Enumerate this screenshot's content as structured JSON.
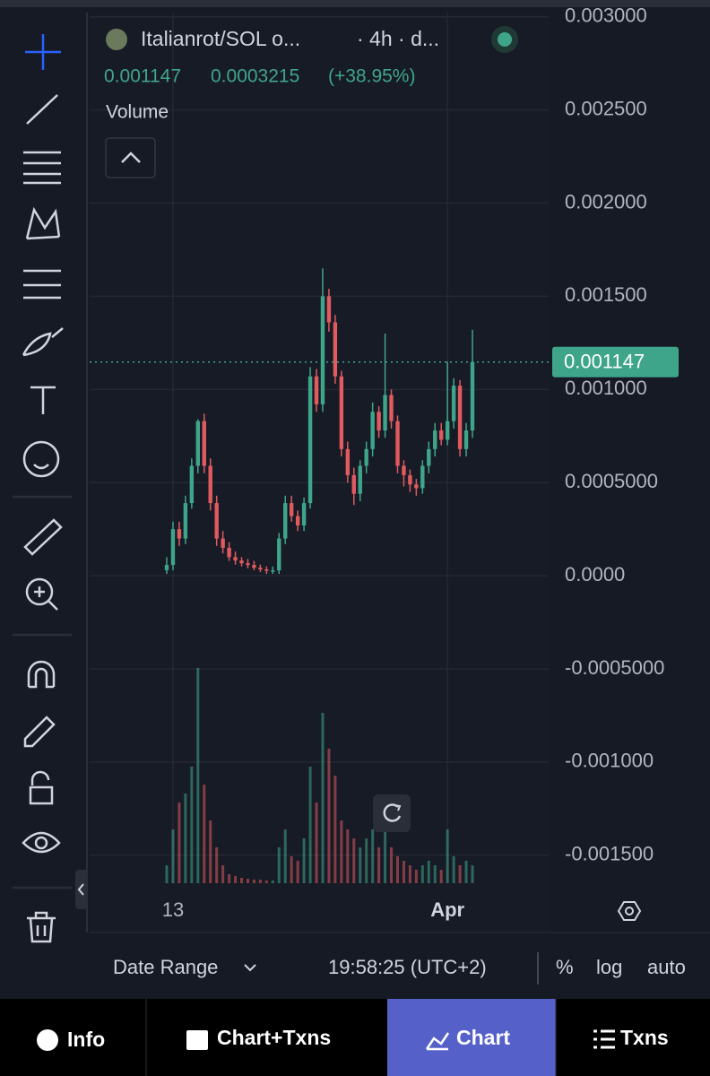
{
  "chart_data": {
    "type": "candlestick",
    "title": "Italianrot/SOL o...",
    "interval": "· 4h · d...",
    "price_change": "0.0003215",
    "percent_change": "(+38.95%)",
    "last_price": 0.001147,
    "volume_label": "Volume",
    "categories": [
      null,
      "13",
      null,
      null,
      null,
      null,
      null,
      null,
      null,
      null,
      null,
      null,
      null,
      null,
      null,
      null,
      null,
      null,
      null,
      null,
      null,
      null,
      null,
      null,
      null,
      null,
      null,
      null,
      null,
      null,
      null,
      null,
      null,
      null,
      null,
      null,
      null,
      null,
      null,
      null,
      null,
      null,
      null,
      null,
      null,
      "Apr",
      null,
      null,
      null,
      null
    ],
    "open": [
      3e-05,
      5.8e-05,
      0.00025,
      0.0002,
      0.00039,
      0.00059,
      0.00083,
      0.00059,
      0.00039,
      0.0002,
      0.00015,
      0.0001,
      8.2e-05,
      6.7e-05,
      5.8e-05,
      4.3e-05,
      3.4e-05,
      2.9e-05,
      2.9e-05,
      0.0002,
      0.00039,
      0.00032,
      0.00027,
      0.00039,
      0.00107,
      0.00092,
      0.0015,
      0.00136,
      0.00107,
      0.00068,
      0.00054,
      0.00044,
      0.00059,
      0.00068,
      0.00088,
      0.00078,
      0.00097,
      0.00083,
      0.00059,
      0.00054,
      0.00049,
      0.00047,
      0.00059,
      0.00068,
      0.00078,
      0.00073,
      0.00083,
      0.00102,
      0.00068,
      0.00078
    ],
    "high": [
      0.0001,
      0.00029,
      0.00029,
      0.00043,
      0.00063,
      0.00084,
      0.00087,
      0.00063,
      0.00043,
      0.00024,
      0.00018,
      0.00013,
      0.0001,
      9e-05,
      8e-05,
      6e-05,
      5e-05,
      5e-05,
      0.00023,
      0.00043,
      0.00043,
      0.00035,
      0.00042,
      0.00112,
      0.00111,
      0.00165,
      0.00154,
      0.0014,
      0.0011,
      0.00072,
      0.00058,
      0.00062,
      0.00072,
      0.00093,
      0.00091,
      0.0013,
      0.001,
      0.00086,
      0.00062,
      0.00057,
      0.00052,
      0.00062,
      0.00072,
      0.00082,
      0.00082,
      0.00115,
      0.00106,
      0.00105,
      0.00082,
      0.00132
    ],
    "low": [
      1e-05,
      3e-05,
      0.00016,
      0.00017,
      0.00036,
      0.00055,
      0.00055,
      0.00035,
      0.00016,
      0.00012,
      8e-05,
      6e-05,
      5e-05,
      4e-05,
      3e-05,
      2e-05,
      1e-05,
      1e-05,
      1e-05,
      0.00017,
      0.00029,
      0.00024,
      0.00024,
      0.00036,
      0.00088,
      0.00088,
      0.00131,
      0.00103,
      0.00064,
      0.0005,
      0.00038,
      0.0004,
      0.00055,
      0.00064,
      0.00074,
      0.00074,
      0.00079,
      0.00055,
      0.00048,
      0.00045,
      0.00043,
      0.00044,
      0.00055,
      0.00064,
      0.0007,
      0.0007,
      0.00079,
      0.00064,
      0.00064,
      0.00074
    ],
    "close": [
      5.8e-05,
      0.00025,
      0.0002,
      0.00039,
      0.00059,
      0.00083,
      0.00059,
      0.00039,
      0.0002,
      0.00015,
      0.0001,
      8.2e-05,
      6.7e-05,
      5.8e-05,
      4.3e-05,
      3.4e-05,
      2.9e-05,
      2.9e-05,
      0.0002,
      0.00039,
      0.00032,
      0.00027,
      0.00039,
      0.00107,
      0.00092,
      0.0015,
      0.00136,
      0.00107,
      0.00068,
      0.00054,
      0.00044,
      0.00059,
      0.00068,
      0.00088,
      0.00078,
      0.00097,
      0.00083,
      0.00059,
      0.00054,
      0.00049,
      0.00047,
      0.00059,
      0.00068,
      0.00078,
      0.00073,
      0.00083,
      0.00102,
      0.00068,
      0.00078,
      0.001147
    ],
    "volume": [
      20,
      60,
      90,
      100,
      130,
      240,
      110,
      70,
      40,
      20,
      10,
      8,
      6,
      5,
      4,
      4,
      3,
      3,
      40,
      60,
      30,
      25,
      50,
      130,
      90,
      190,
      150,
      120,
      70,
      60,
      50,
      40,
      50,
      60,
      40,
      70,
      40,
      30,
      25,
      20,
      15,
      20,
      25,
      20,
      15,
      60,
      30,
      20,
      25,
      20
    ],
    "up_color": "#3fa58a",
    "down_color": "#e05a5f",
    "ylim": [
      -0.00165,
      0.00309
    ],
    "yticks": [
      {
        "value": -0.0015,
        "label": "-0.001500"
      },
      {
        "value": -0.001,
        "label": "-0.001000"
      },
      {
        "value": -0.0005,
        "label": "-0.0005000"
      },
      {
        "value": 0,
        "label": "0.0000"
      },
      {
        "value": 0.0005,
        "label": "0.0005000"
      },
      {
        "value": 0.001,
        "label": "0.001000"
      },
      {
        "value": 0.0015,
        "label": "0.001500"
      },
      {
        "value": 0.002,
        "label": "0.002000"
      },
      {
        "value": 0.0025,
        "label": "0.002500"
      },
      {
        "value": 0.003,
        "label": "0.003000"
      }
    ],
    "grid": true,
    "log_scale": false
  },
  "ui": {
    "date_range": "Date Range",
    "clock": "19:58:25 (UTC+2)",
    "percent": "%",
    "log": "log",
    "auto": "auto",
    "tabs": [
      "Info",
      "Chart+Txns",
      "Chart",
      "Txns"
    ]
  }
}
